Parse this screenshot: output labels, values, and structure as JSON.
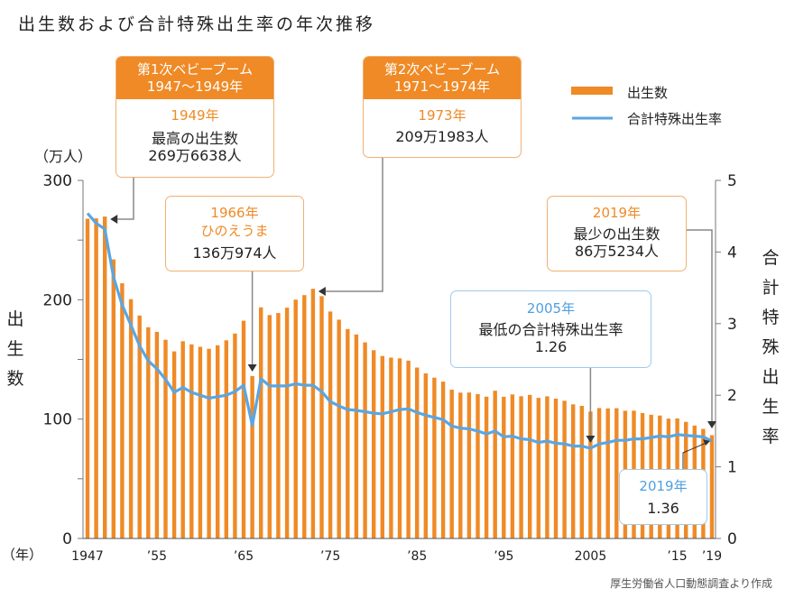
{
  "title": "出生数および合計特殊出生率の年次推移",
  "left_axis_unit": "（万人）",
  "left_axis_title": [
    "出",
    "生",
    "数"
  ],
  "right_axis_title": [
    "合",
    "計",
    "特",
    "殊",
    "出",
    "生",
    "率"
  ],
  "x_axis_unit": "（年）",
  "source": "厚生労働省人口動態調査より作成",
  "legend": [
    {
      "label": "出生数",
      "type": "bar",
      "color": "#ef8a26"
    },
    {
      "label": "合計特殊出生率",
      "type": "line",
      "color": "#5aa6e2"
    }
  ],
  "annotations": {
    "boom1": {
      "header_line1": "第1次ベビーブーム",
      "header_line2": "1947〜1949年",
      "year": "1949年",
      "line1": "最高の出生数",
      "line2": "269万6638人"
    },
    "boom2": {
      "header_line1": "第2次ベビーブーム",
      "header_line2": "1971〜1974年",
      "year": "1973年",
      "line1": "209万1983人"
    },
    "hinoeuma": {
      "year": "1966年",
      "line1": "ひのえうま",
      "line2": "136万974人"
    },
    "min_births": {
      "year": "2019年",
      "line1": "最少の出生数",
      "line2": "86万5234人"
    },
    "min_tfr": {
      "year": "2005年",
      "line1": "最低の合計特殊出生率",
      "line2": "1.26"
    },
    "tfr_2019": {
      "year": "2019年",
      "line1": "1.36"
    }
  },
  "chart_data": {
    "type": "bar",
    "title": "出生数および合計特殊出生率の年次推移",
    "xlabel": "（年）",
    "ylabel": "出生数（万人）",
    "y2label": "合計特殊出生率",
    "ylim": [
      0,
      300
    ],
    "y2lim": [
      0,
      5
    ],
    "yticks": [
      0,
      100,
      200,
      300
    ],
    "y2ticks": [
      0,
      1,
      2,
      3,
      4,
      5
    ],
    "grid": false,
    "legend_position": "top-right",
    "x_tick_labels": [
      {
        "year": 1947,
        "label": "1947"
      },
      {
        "year": 1955,
        "label": "’55"
      },
      {
        "year": 1965,
        "label": "’65"
      },
      {
        "year": 1975,
        "label": "’75"
      },
      {
        "year": 1985,
        "label": "’85"
      },
      {
        "year": 1995,
        "label": "’95"
      },
      {
        "year": 2005,
        "label": "2005"
      },
      {
        "year": 2015,
        "label": "’15"
      },
      {
        "year": 2019,
        "label": "’19"
      }
    ],
    "years": [
      1947,
      1948,
      1949,
      1950,
      1951,
      1952,
      1953,
      1954,
      1955,
      1956,
      1957,
      1958,
      1959,
      1960,
      1961,
      1962,
      1963,
      1964,
      1965,
      1966,
      1967,
      1968,
      1969,
      1970,
      1971,
      1972,
      1973,
      1974,
      1975,
      1976,
      1977,
      1978,
      1979,
      1980,
      1981,
      1982,
      1983,
      1984,
      1985,
      1986,
      1987,
      1988,
      1989,
      1990,
      1991,
      1992,
      1993,
      1994,
      1995,
      1996,
      1997,
      1998,
      1999,
      2000,
      2001,
      2002,
      2003,
      2004,
      2005,
      2006,
      2007,
      2008,
      2009,
      2010,
      2011,
      2012,
      2013,
      2014,
      2015,
      2016,
      2017,
      2018,
      2019
    ],
    "series": [
      {
        "name": "出生数",
        "axis": "left",
        "type": "bar",
        "values": [
          267.9,
          268.2,
          269.7,
          233.8,
          213.8,
          200.5,
          186.8,
          177.0,
          173.1,
          166.5,
          156.7,
          165.3,
          162.6,
          160.6,
          158.9,
          161.9,
          166.0,
          171.7,
          182.4,
          136.1,
          193.6,
          187.2,
          188.9,
          193.4,
          200.1,
          203.9,
          209.2,
          203.0,
          190.1,
          183.3,
          175.5,
          170.9,
          164.3,
          157.7,
          152.9,
          151.5,
          150.9,
          149.0,
          143.2,
          138.3,
          134.7,
          131.4,
          124.7,
          122.2,
          122.3,
          120.9,
          118.8,
          123.8,
          118.7,
          120.7,
          119.2,
          120.3,
          117.8,
          119.1,
          117.1,
          115.4,
          112.4,
          111.1,
          106.3,
          109.3,
          109.0,
          109.1,
          107.0,
          107.1,
          105.1,
          103.7,
          103.0,
          100.4,
          100.6,
          97.7,
          94.6,
          91.8,
          86.5
        ]
      },
      {
        "name": "合計特殊出生率",
        "axis": "right",
        "type": "line",
        "values": [
          4.54,
          4.4,
          4.32,
          3.65,
          3.26,
          2.98,
          2.69,
          2.48,
          2.37,
          2.22,
          2.04,
          2.11,
          2.04,
          2.0,
          1.96,
          1.98,
          2.0,
          2.05,
          2.14,
          1.58,
          2.23,
          2.13,
          2.13,
          2.13,
          2.16,
          2.14,
          2.14,
          2.05,
          1.91,
          1.85,
          1.8,
          1.79,
          1.77,
          1.75,
          1.74,
          1.77,
          1.8,
          1.81,
          1.76,
          1.72,
          1.69,
          1.66,
          1.57,
          1.54,
          1.53,
          1.5,
          1.46,
          1.5,
          1.42,
          1.43,
          1.39,
          1.38,
          1.34,
          1.36,
          1.33,
          1.32,
          1.29,
          1.29,
          1.26,
          1.32,
          1.34,
          1.37,
          1.37,
          1.39,
          1.39,
          1.41,
          1.43,
          1.42,
          1.45,
          1.44,
          1.43,
          1.42,
          1.36
        ]
      }
    ]
  }
}
